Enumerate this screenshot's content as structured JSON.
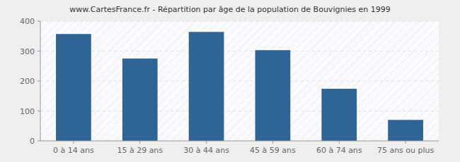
{
  "chart_data": {
    "type": "bar",
    "title": "www.CartesFrance.fr - Répartition par âge de la population de Bouvignies en 1999",
    "categories": [
      "0 à 14 ans",
      "15 à 29 ans",
      "30 à 44 ans",
      "45 à 59 ans",
      "60 à 74 ans",
      "75 ans ou plus"
    ],
    "values": [
      357,
      275,
      364,
      303,
      174,
      70
    ],
    "color": "#2f6496",
    "ylim": [
      0,
      400
    ],
    "yticks": [
      0,
      100,
      200,
      300,
      400
    ],
    "grid": true
  }
}
